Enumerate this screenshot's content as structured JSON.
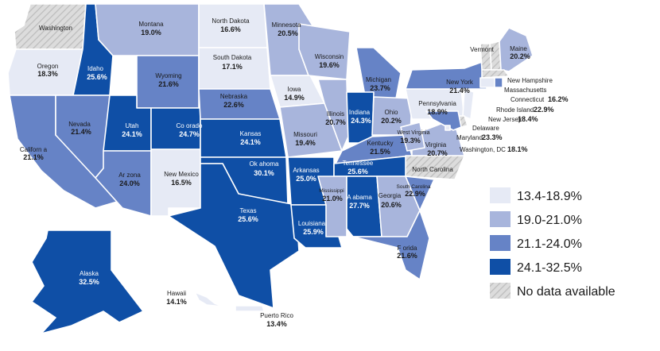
{
  "colors": {
    "bin1": "#e6eaf5",
    "bin2": "#a8b5dc",
    "bin3": "#6683c6",
    "bin4": "#0f4fa6",
    "nodata": "#d3d3d3"
  },
  "legend": [
    {
      "label": "13.4-18.9%",
      "bin": "bin1"
    },
    {
      "label": "19.0-21.0%",
      "bin": "bin2"
    },
    {
      "label": "21.1-24.0%",
      "bin": "bin3"
    },
    {
      "label": "24.1-32.5%",
      "bin": "bin4"
    },
    {
      "label": "No data available",
      "bin": "nodata"
    }
  ],
  "states": [
    {
      "id": "WA",
      "name": "Washington",
      "value": "",
      "bin": "nodata"
    },
    {
      "id": "OR",
      "name": "Oregon",
      "value": "18.3%",
      "bin": "bin1"
    },
    {
      "id": "CA",
      "name": "Californ a",
      "value": "21.1%",
      "bin": "bin3"
    },
    {
      "id": "ID",
      "name": "Idaho",
      "value": "25.6%",
      "bin": "bin4"
    },
    {
      "id": "NV",
      "name": "Nevada",
      "value": "21.4%",
      "bin": "bin3"
    },
    {
      "id": "MT",
      "name": "Montana",
      "value": "19.0%",
      "bin": "bin2"
    },
    {
      "id": "WY",
      "name": "Wyoming",
      "value": "21.6%",
      "bin": "bin3"
    },
    {
      "id": "UT",
      "name": "Utah",
      "value": "24.1%",
      "bin": "bin4"
    },
    {
      "id": "AZ",
      "name": "Ar zona",
      "value": "24.0%",
      "bin": "bin3"
    },
    {
      "id": "CO",
      "name": "Co orado",
      "value": "24.7%",
      "bin": "bin4"
    },
    {
      "id": "NM",
      "name": "New Mexico",
      "value": "16.5%",
      "bin": "bin1"
    },
    {
      "id": "ND",
      "name": "North Dakota",
      "value": "16.6%",
      "bin": "bin1"
    },
    {
      "id": "SD",
      "name": "South Dakota",
      "value": "17.1%",
      "bin": "bin1"
    },
    {
      "id": "NE",
      "name": "Nebraska",
      "value": "22.6%",
      "bin": "bin3"
    },
    {
      "id": "KS",
      "name": "Kansas",
      "value": "24.1%",
      "bin": "bin4"
    },
    {
      "id": "OK",
      "name": "Ok ahoma",
      "value": "30.1%",
      "bin": "bin4"
    },
    {
      "id": "TX",
      "name": "Texas",
      "value": "25.6%",
      "bin": "bin4"
    },
    {
      "id": "MN",
      "name": "Minnesota",
      "value": "20.5%",
      "bin": "bin2"
    },
    {
      "id": "IA",
      "name": "Iowa",
      "value": "14.9%",
      "bin": "bin1"
    },
    {
      "id": "MO",
      "name": "Missouri",
      "value": "19.4%",
      "bin": "bin2"
    },
    {
      "id": "AR",
      "name": "Arkansas",
      "value": "25.0%",
      "bin": "bin4"
    },
    {
      "id": "LA",
      "name": "Louisiana",
      "value": "25.9%",
      "bin": "bin4"
    },
    {
      "id": "WI",
      "name": "Wisconsin",
      "value": "19.6%",
      "bin": "bin2"
    },
    {
      "id": "IL",
      "name": "Illinois",
      "value": "20.7%",
      "bin": "bin2"
    },
    {
      "id": "MI",
      "name": "Michigan",
      "value": "23.7%",
      "bin": "bin3"
    },
    {
      "id": "IN",
      "name": "Indiana",
      "value": "24.3%",
      "bin": "bin4"
    },
    {
      "id": "OH",
      "name": "Ohio",
      "value": "20.2%",
      "bin": "bin2"
    },
    {
      "id": "KY",
      "name": "Kentucky",
      "value": "21.5%",
      "bin": "bin3"
    },
    {
      "id": "TN",
      "name": "Tennessee",
      "value": "25.6%",
      "bin": "bin4"
    },
    {
      "id": "MS",
      "name": "Mississippi",
      "value": "21.0%",
      "bin": "bin2"
    },
    {
      "id": "AL",
      "name": "A abama",
      "value": "27.7%",
      "bin": "bin4"
    },
    {
      "id": "GA",
      "name": "Georgia",
      "value": "20.6%",
      "bin": "bin2"
    },
    {
      "id": "FL",
      "name": "F orida",
      "value": "21.6%",
      "bin": "bin3"
    },
    {
      "id": "SC",
      "name": "South Carolina",
      "value": "22.9%",
      "bin": "bin3"
    },
    {
      "id": "NC",
      "name": "North Carolina",
      "value": "",
      "bin": "nodata"
    },
    {
      "id": "VA",
      "name": "Virginia",
      "value": "20.7%",
      "bin": "bin2"
    },
    {
      "id": "WV",
      "name": "West Virginia",
      "value": "19.3%",
      "bin": "bin2"
    },
    {
      "id": "PA",
      "name": "Pennsylvania",
      "value": "18.9%",
      "bin": "bin1"
    },
    {
      "id": "NY",
      "name": "New York",
      "value": "21.4%",
      "bin": "bin3"
    },
    {
      "id": "VT",
      "name": "Vermont",
      "value": "",
      "bin": "nodata"
    },
    {
      "id": "NH",
      "name": "New Hampshire",
      "value": "",
      "bin": "nodata"
    },
    {
      "id": "ME",
      "name": "Maine",
      "value": "20.2%",
      "bin": "bin2"
    },
    {
      "id": "MA",
      "name": "Massachusetts",
      "value": "",
      "bin": "nodata"
    },
    {
      "id": "CT",
      "name": "Connecticut",
      "value": "16.2%",
      "bin": "bin1"
    },
    {
      "id": "RI",
      "name": "Rhode Island",
      "value": "22.9%",
      "bin": "bin3"
    },
    {
      "id": "NJ",
      "name": "New Jersey",
      "value": "18.4%",
      "bin": "bin1"
    },
    {
      "id": "DE",
      "name": "Delaware",
      "value": "",
      "bin": "nodata"
    },
    {
      "id": "MD",
      "name": "Maryland",
      "value": "23.3%",
      "bin": "bin3"
    },
    {
      "id": "DC",
      "name": "Washington, DC",
      "value": "18.1%",
      "bin": "bin1"
    },
    {
      "id": "AK",
      "name": "Alaska",
      "value": "32.5%",
      "bin": "bin4"
    },
    {
      "id": "HI",
      "name": "Hawaii",
      "value": "14.1%",
      "bin": "bin1"
    },
    {
      "id": "PR",
      "name": "Puerto Rico",
      "value": "13.4%",
      "bin": "bin1"
    }
  ]
}
